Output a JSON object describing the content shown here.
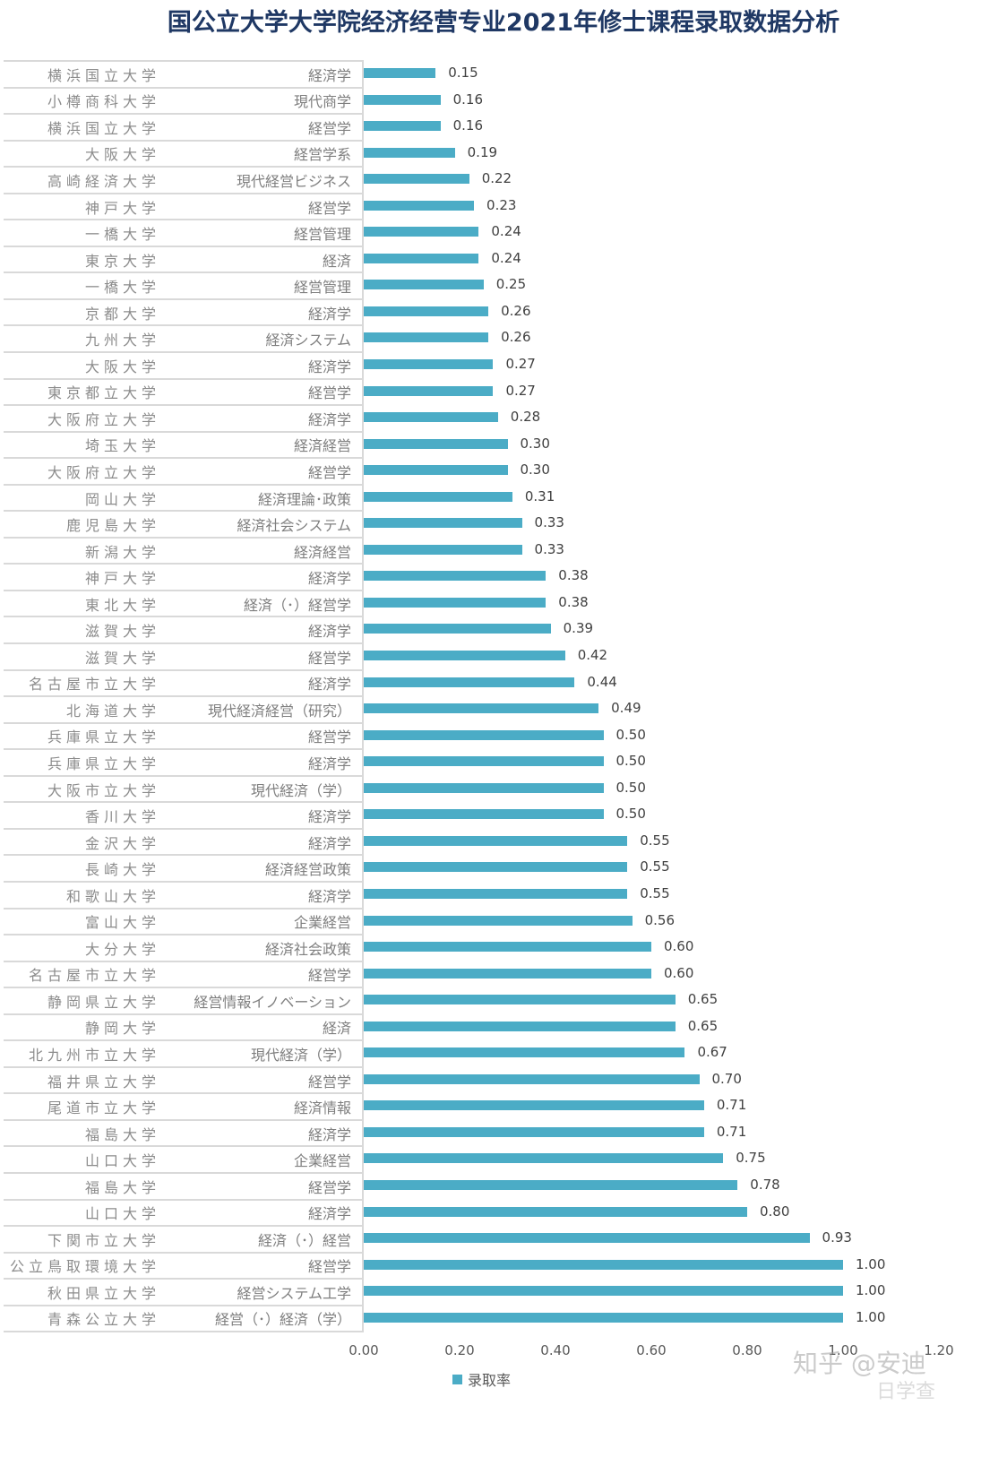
{
  "title": "国公立大学大学院经济经营专业2021年修士课程录取数据分析",
  "legend": {
    "label": "录取率",
    "color": "#4bacc6"
  },
  "watermark": {
    "main": "知乎 @安迪",
    "sub": "日学查"
  },
  "axis": {
    "ticks": [
      "0.00",
      "0.20",
      "0.40",
      "0.60",
      "0.80",
      "1.00",
      "1.20"
    ],
    "min": 0,
    "max": 1.2
  },
  "chart_data": {
    "type": "bar",
    "orientation": "horizontal",
    "title": "国公立大学大学院经济经营专业2021年修士课程录取数据分析",
    "xlabel": "",
    "ylabel": "",
    "xlim": [
      0,
      1.2
    ],
    "xticks": [
      0.0,
      0.2,
      0.4,
      0.6,
      0.8,
      1.0,
      1.2
    ],
    "grid": false,
    "legend_position": "bottom",
    "series": [
      {
        "name": "录取率",
        "color": "#4bacc6"
      }
    ],
    "rows": [
      {
        "university": "横浜国立大学",
        "major": "経済学",
        "value": 0.15,
        "label": "0.15"
      },
      {
        "university": "小樽商科大学",
        "major": "現代商学",
        "value": 0.16,
        "label": "0.16"
      },
      {
        "university": "横浜国立大学",
        "major": "経営学",
        "value": 0.16,
        "label": "0.16"
      },
      {
        "university": "大阪大学",
        "major": "経営学系",
        "value": 0.19,
        "label": "0.19"
      },
      {
        "university": "高崎経済大学",
        "major": "現代経営ビジネス",
        "value": 0.22,
        "label": "0.22"
      },
      {
        "university": "神戸大学",
        "major": "経営学",
        "value": 0.23,
        "label": "0.23"
      },
      {
        "university": "一橋大学",
        "major": "経営管理",
        "value": 0.24,
        "label": "0.24"
      },
      {
        "university": "東京大学",
        "major": "経済",
        "value": 0.24,
        "label": "0.24"
      },
      {
        "university": "一橋大学",
        "major": "経営管理",
        "value": 0.25,
        "label": "0.25"
      },
      {
        "university": "京都大学",
        "major": "経済学",
        "value": 0.26,
        "label": "0.26"
      },
      {
        "university": "九州大学",
        "major": "経済システム",
        "value": 0.26,
        "label": "0.26"
      },
      {
        "university": "大阪大学",
        "major": "経済学",
        "value": 0.27,
        "label": "0.27"
      },
      {
        "university": "東京都立大学",
        "major": "経営学",
        "value": 0.27,
        "label": "0.27"
      },
      {
        "university": "大阪府立大学",
        "major": "経済学",
        "value": 0.28,
        "label": "0.28"
      },
      {
        "university": "埼玉大学",
        "major": "経済経営",
        "value": 0.3,
        "label": "0.30"
      },
      {
        "university": "大阪府立大学",
        "major": "経営学",
        "value": 0.3,
        "label": "0.30"
      },
      {
        "university": "岡山大学",
        "major": "経済理論･政策",
        "value": 0.31,
        "label": "0.31"
      },
      {
        "university": "鹿児島大学",
        "major": "経済社会システム",
        "value": 0.33,
        "label": "0.33"
      },
      {
        "university": "新潟大学",
        "major": "経済経営",
        "value": 0.33,
        "label": "0.33"
      },
      {
        "university": "神戸大学",
        "major": "経済学",
        "value": 0.38,
        "label": "0.38"
      },
      {
        "university": "東北大学",
        "major": "経済（･）経営学",
        "value": 0.38,
        "label": "0.38"
      },
      {
        "university": "滋賀大学",
        "major": "経済学",
        "value": 0.39,
        "label": "0.39"
      },
      {
        "university": "滋賀大学",
        "major": "経営学",
        "value": 0.42,
        "label": "0.42"
      },
      {
        "university": "名古屋市立大学",
        "major": "経済学",
        "value": 0.44,
        "label": "0.44"
      },
      {
        "university": "北海道大学",
        "major": "現代経済経営（研究）",
        "value": 0.49,
        "label": "0.49"
      },
      {
        "university": "兵庫県立大学",
        "major": "経営学",
        "value": 0.5,
        "label": "0.50"
      },
      {
        "university": "兵庫県立大学",
        "major": "経済学",
        "value": 0.5,
        "label": "0.50"
      },
      {
        "university": "大阪市立大学",
        "major": "現代経済（学）",
        "value": 0.5,
        "label": "0.50"
      },
      {
        "university": "香川大学",
        "major": "経済学",
        "value": 0.5,
        "label": "0.50"
      },
      {
        "university": "金沢大学",
        "major": "経済学",
        "value": 0.55,
        "label": "0.55"
      },
      {
        "university": "長崎大学",
        "major": "経済経営政策",
        "value": 0.55,
        "label": "0.55"
      },
      {
        "university": "和歌山大学",
        "major": "経済学",
        "value": 0.55,
        "label": "0.55"
      },
      {
        "university": "富山大学",
        "major": "企業経営",
        "value": 0.56,
        "label": "0.56"
      },
      {
        "university": "大分大学",
        "major": "経済社会政策",
        "value": 0.6,
        "label": "0.60"
      },
      {
        "university": "名古屋市立大学",
        "major": "経営学",
        "value": 0.6,
        "label": "0.60"
      },
      {
        "university": "静岡県立大学",
        "major": "経営情報イノベーション",
        "value": 0.65,
        "label": "0.65"
      },
      {
        "university": "静岡大学",
        "major": "経済",
        "value": 0.65,
        "label": "0.65"
      },
      {
        "university": "北九州市立大学",
        "major": "現代経済（学）",
        "value": 0.67,
        "label": "0.67"
      },
      {
        "university": "福井県立大学",
        "major": "経営学",
        "value": 0.7,
        "label": "0.70"
      },
      {
        "university": "尾道市立大学",
        "major": "経済情報",
        "value": 0.71,
        "label": "0.71"
      },
      {
        "university": "福島大学",
        "major": "経済学",
        "value": 0.71,
        "label": "0.71"
      },
      {
        "university": "山口大学",
        "major": "企業経営",
        "value": 0.75,
        "label": "0.75"
      },
      {
        "university": "福島大学",
        "major": "経営学",
        "value": 0.78,
        "label": "0.78"
      },
      {
        "university": "山口大学",
        "major": "経済学",
        "value": 0.8,
        "label": "0.80"
      },
      {
        "university": "下関市立大学",
        "major": "経済（･）経営",
        "value": 0.93,
        "label": "0.93"
      },
      {
        "university": "公立鳥取環境大学",
        "major": "経営学",
        "value": 1.0,
        "label": "1.00"
      },
      {
        "university": "秋田県立大学",
        "major": "経営システム工学",
        "value": 1.0,
        "label": "1.00"
      },
      {
        "university": "青森公立大学",
        "major": "経営（･）経済（学）",
        "value": 1.0,
        "label": "1.00"
      }
    ]
  }
}
